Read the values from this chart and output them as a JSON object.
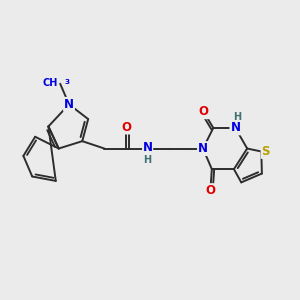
{
  "bg_color": "#ebebeb",
  "bond_color": "#2d2d2d",
  "bond_width": 1.4,
  "atom_colors": {
    "N": "#0000e0",
    "O": "#e00000",
    "S": "#b8a000",
    "H_label": "#407070",
    "C": "#2d2d2d"
  },
  "font_size_atom": 8.5,
  "font_size_small": 7.0,
  "figsize": [
    3.0,
    3.0
  ],
  "dpi": 100,
  "xlim": [
    0,
    10
  ],
  "ylim": [
    0,
    10
  ]
}
